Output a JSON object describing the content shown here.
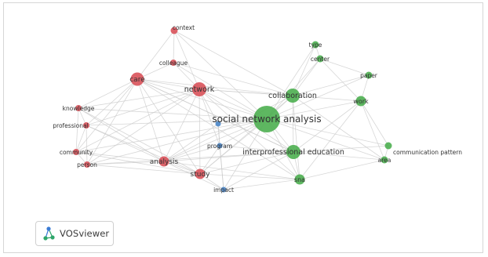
{
  "app": {
    "logo_text": "VOSviewer"
  },
  "palette": {
    "red": "#d9525a",
    "green": "#4caf50",
    "blue": "#4a86c8",
    "edge": "#c9c9c9"
  },
  "network": {
    "nodes": [
      {
        "id": "social-network-analysis",
        "label": "social network analysis",
        "cluster": "green"
      },
      {
        "id": "collaboration",
        "label": "collaboration",
        "cluster": "green"
      },
      {
        "id": "interprofessional-education",
        "label": "interprofessional education",
        "cluster": "green"
      },
      {
        "id": "sna",
        "label": "sna",
        "cluster": "green"
      },
      {
        "id": "work",
        "label": "work",
        "cluster": "green"
      },
      {
        "id": "paper",
        "label": "paper",
        "cluster": "green"
      },
      {
        "id": "type",
        "label": "type",
        "cluster": "green"
      },
      {
        "id": "center",
        "label": "center",
        "cluster": "green"
      },
      {
        "id": "area",
        "label": "area",
        "cluster": "green"
      },
      {
        "id": "communication-pattern",
        "label": "communication pattern",
        "cluster": "green"
      },
      {
        "id": "care",
        "label": "care",
        "cluster": "red"
      },
      {
        "id": "network",
        "label": "network",
        "cluster": "red"
      },
      {
        "id": "context",
        "label": "context",
        "cluster": "red"
      },
      {
        "id": "colleague",
        "label": "colleague",
        "cluster": "red"
      },
      {
        "id": "knowledge",
        "label": "knowledge",
        "cluster": "red"
      },
      {
        "id": "professional",
        "label": "professional",
        "cluster": "red"
      },
      {
        "id": "community",
        "label": "community",
        "cluster": "red"
      },
      {
        "id": "person",
        "label": "person",
        "cluster": "red"
      },
      {
        "id": "analysis",
        "label": "analysis",
        "cluster": "red"
      },
      {
        "id": "study",
        "label": "study",
        "cluster": "red"
      },
      {
        "id": "program",
        "label": "program",
        "cluster": "blue"
      },
      {
        "id": "impact",
        "label": "impact",
        "cluster": "blue"
      },
      {
        "id": "blue-unlabeled",
        "label": "",
        "cluster": "blue"
      }
    ],
    "edges": [
      [
        "social-network-analysis",
        "collaboration"
      ],
      [
        "social-network-analysis",
        "interprofessional-education"
      ],
      [
        "social-network-analysis",
        "sna"
      ],
      [
        "social-network-analysis",
        "work"
      ],
      [
        "social-network-analysis",
        "paper"
      ],
      [
        "social-network-analysis",
        "type"
      ],
      [
        "social-network-analysis",
        "center"
      ],
      [
        "social-network-analysis",
        "area"
      ],
      [
        "social-network-analysis",
        "communication-pattern"
      ],
      [
        "social-network-analysis",
        "care"
      ],
      [
        "social-network-analysis",
        "network"
      ],
      [
        "social-network-analysis",
        "context"
      ],
      [
        "social-network-analysis",
        "colleague"
      ],
      [
        "social-network-analysis",
        "knowledge"
      ],
      [
        "social-network-analysis",
        "professional"
      ],
      [
        "social-network-analysis",
        "community"
      ],
      [
        "social-network-analysis",
        "person"
      ],
      [
        "social-network-analysis",
        "analysis"
      ],
      [
        "social-network-analysis",
        "study"
      ],
      [
        "social-network-analysis",
        "program"
      ],
      [
        "social-network-analysis",
        "impact"
      ],
      [
        "social-network-analysis",
        "blue-unlabeled"
      ],
      [
        "collaboration",
        "interprofessional-education"
      ],
      [
        "collaboration",
        "type"
      ],
      [
        "collaboration",
        "center"
      ],
      [
        "collaboration",
        "work"
      ],
      [
        "collaboration",
        "paper"
      ],
      [
        "collaboration",
        "network"
      ],
      [
        "collaboration",
        "care"
      ],
      [
        "collaboration",
        "sna"
      ],
      [
        "collaboration",
        "area"
      ],
      [
        "collaboration",
        "study"
      ],
      [
        "collaboration",
        "analysis"
      ],
      [
        "interprofessional-education",
        "sna"
      ],
      [
        "interprofessional-education",
        "area"
      ],
      [
        "interprofessional-education",
        "communication-pattern"
      ],
      [
        "interprofessional-education",
        "work"
      ],
      [
        "interprofessional-education",
        "study"
      ],
      [
        "interprofessional-education",
        "analysis"
      ],
      [
        "interprofessional-education",
        "program"
      ],
      [
        "interprofessional-education",
        "impact"
      ],
      [
        "interprofessional-education",
        "network"
      ],
      [
        "interprofessional-education",
        "care"
      ],
      [
        "sna",
        "area"
      ],
      [
        "sna",
        "work"
      ],
      [
        "sna",
        "study"
      ],
      [
        "sna",
        "analysis"
      ],
      [
        "sna",
        "impact"
      ],
      [
        "work",
        "paper"
      ],
      [
        "work",
        "area"
      ],
      [
        "work",
        "communication-pattern"
      ],
      [
        "work",
        "center"
      ],
      [
        "area",
        "communication-pattern"
      ],
      [
        "paper",
        "center"
      ],
      [
        "type",
        "center"
      ],
      [
        "care",
        "network"
      ],
      [
        "care",
        "context"
      ],
      [
        "care",
        "colleague"
      ],
      [
        "care",
        "knowledge"
      ],
      [
        "care",
        "professional"
      ],
      [
        "care",
        "community"
      ],
      [
        "care",
        "person"
      ],
      [
        "care",
        "analysis"
      ],
      [
        "care",
        "study"
      ],
      [
        "network",
        "context"
      ],
      [
        "network",
        "colleague"
      ],
      [
        "network",
        "analysis"
      ],
      [
        "network",
        "study"
      ],
      [
        "network",
        "knowledge"
      ],
      [
        "network",
        "professional"
      ],
      [
        "network",
        "community"
      ],
      [
        "network",
        "person"
      ],
      [
        "network",
        "program"
      ],
      [
        "network",
        "blue-unlabeled"
      ],
      [
        "network",
        "collaboration"
      ],
      [
        "analysis",
        "study"
      ],
      [
        "analysis",
        "knowledge"
      ],
      [
        "analysis",
        "professional"
      ],
      [
        "analysis",
        "community"
      ],
      [
        "analysis",
        "person"
      ],
      [
        "analysis",
        "program"
      ],
      [
        "analysis",
        "impact"
      ],
      [
        "analysis",
        "blue-unlabeled"
      ],
      [
        "study",
        "program"
      ],
      [
        "study",
        "impact"
      ],
      [
        "study",
        "community"
      ],
      [
        "study",
        "person"
      ],
      [
        "study",
        "professional"
      ],
      [
        "study",
        "knowledge"
      ],
      [
        "knowledge",
        "professional"
      ],
      [
        "knowledge",
        "community"
      ],
      [
        "professional",
        "community"
      ],
      [
        "community",
        "person"
      ],
      [
        "professional",
        "person"
      ],
      [
        "context",
        "colleague"
      ],
      [
        "program",
        "impact"
      ],
      [
        "program",
        "blue-unlabeled"
      ],
      [
        "impact",
        "blue-unlabeled"
      ],
      [
        "care",
        "sna"
      ],
      [
        "network",
        "sna"
      ],
      [
        "context",
        "collaboration"
      ],
      [
        "colleague",
        "collaboration"
      ],
      [
        "care",
        "interprofessional-education"
      ],
      [
        "person",
        "interprofessional-education"
      ]
    ]
  }
}
